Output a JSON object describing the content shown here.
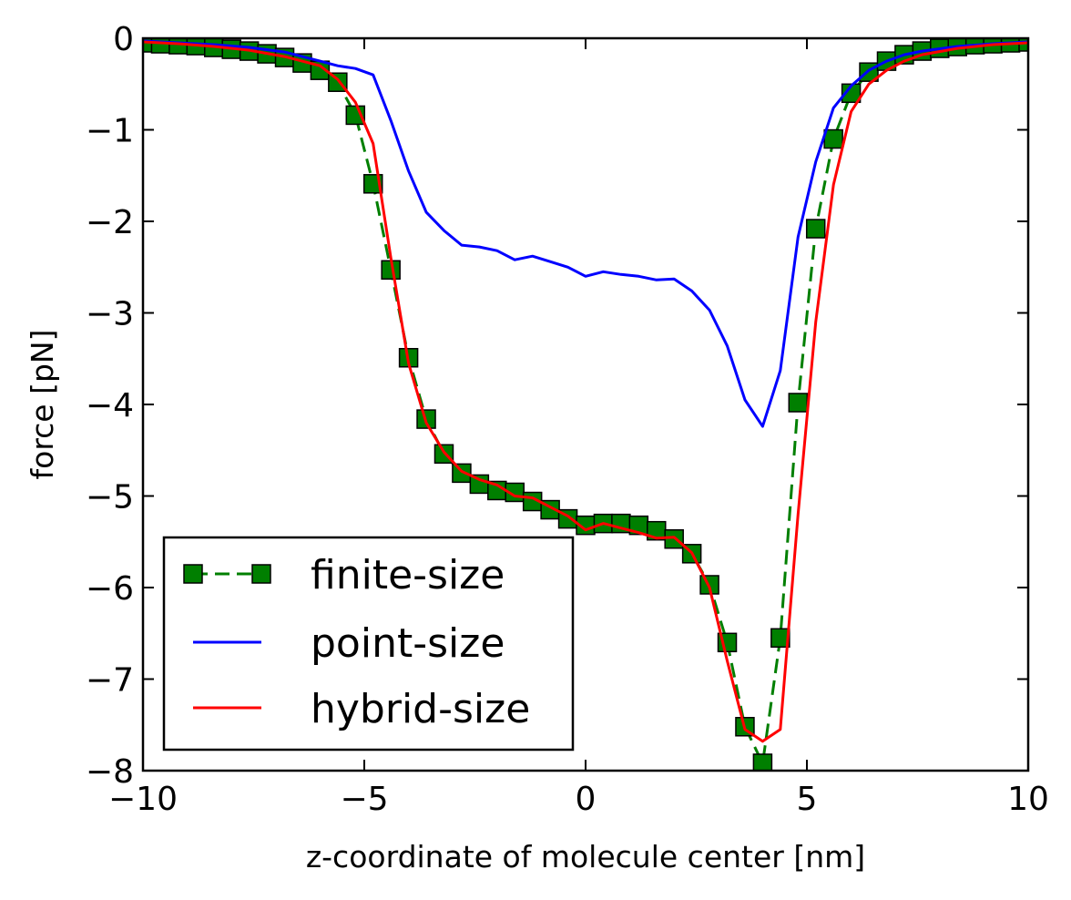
{
  "chart_data": {
    "type": "line",
    "title": "",
    "xlabel": "z-coordinate of molecule center [nm]",
    "ylabel": "force [pN]",
    "xlim": [
      -10,
      10
    ],
    "ylim": [
      -8,
      0
    ],
    "xticks": [
      -10,
      -5,
      0,
      5,
      10
    ],
    "xtick_labels": [
      "−10",
      "−5",
      "0",
      "5",
      "10"
    ],
    "yticks": [
      0,
      -1,
      -2,
      -3,
      -4,
      -5,
      -6,
      -7,
      -8
    ],
    "ytick_labels": [
      "0",
      "−1",
      "−2",
      "−3",
      "−4",
      "−5",
      "−6",
      "−7",
      "−8"
    ],
    "grid": false,
    "legend_position": "lower-left",
    "series": [
      {
        "name": "finite-size",
        "color": "#007f00",
        "style": "dashed-with-square-markers",
        "x": [
          -10,
          -9.6,
          -9.2,
          -8.8,
          -8.4,
          -8.0,
          -7.6,
          -7.2,
          -6.8,
          -6.4,
          -6.0,
          -5.6,
          -5.2,
          -4.8,
          -4.4,
          -4.0,
          -3.6,
          -3.2,
          -2.8,
          -2.4,
          -2.0,
          -1.6,
          -1.2,
          -0.8,
          -0.4,
          0.0,
          0.4,
          0.8,
          1.2,
          1.6,
          2.0,
          2.4,
          2.8,
          3.2,
          3.6,
          4.0,
          4.4,
          4.8,
          5.2,
          5.6,
          6.0,
          6.4,
          6.8,
          7.2,
          7.6,
          8.0,
          8.4,
          8.8,
          9.2,
          9.6,
          10.0
        ],
        "y": [
          -0.05,
          -0.06,
          -0.07,
          -0.08,
          -0.1,
          -0.12,
          -0.14,
          -0.17,
          -0.21,
          -0.27,
          -0.35,
          -0.48,
          -0.84,
          -1.59,
          -2.53,
          -3.49,
          -4.16,
          -4.54,
          -4.75,
          -4.87,
          -4.94,
          -4.96,
          -5.06,
          -5.15,
          -5.25,
          -5.32,
          -5.3,
          -5.3,
          -5.32,
          -5.38,
          -5.47,
          -5.63,
          -5.97,
          -6.6,
          -7.52,
          -7.92,
          -6.55,
          -3.98,
          -2.08,
          -1.1,
          -0.6,
          -0.37,
          -0.25,
          -0.18,
          -0.14,
          -0.11,
          -0.09,
          -0.07,
          -0.06,
          -0.05,
          -0.04
        ]
      },
      {
        "name": "point-size",
        "color": "#0000ff",
        "style": "solid",
        "x": [
          -10,
          -9.2,
          -8.4,
          -7.6,
          -6.8,
          -6.0,
          -5.6,
          -5.2,
          -4.8,
          -4.4,
          -4.0,
          -3.6,
          -3.2,
          -2.8,
          -2.4,
          -2.0,
          -1.6,
          -1.2,
          -0.8,
          -0.4,
          0.0,
          0.4,
          0.8,
          1.2,
          1.6,
          2.0,
          2.4,
          2.8,
          3.2,
          3.6,
          4.0,
          4.4,
          4.8,
          5.2,
          5.6,
          6.0,
          6.4,
          6.8,
          7.2,
          7.6,
          8.4,
          9.2,
          10.0
        ],
        "y": [
          -0.03,
          -0.05,
          -0.07,
          -0.1,
          -0.15,
          -0.25,
          -0.3,
          -0.33,
          -0.4,
          -0.9,
          -1.45,
          -1.9,
          -2.1,
          -2.26,
          -2.28,
          -2.32,
          -2.42,
          -2.38,
          -2.44,
          -2.5,
          -2.6,
          -2.55,
          -2.58,
          -2.6,
          -2.64,
          -2.63,
          -2.76,
          -2.97,
          -3.36,
          -3.95,
          -4.24,
          -3.63,
          -2.17,
          -1.35,
          -0.76,
          -0.52,
          -0.35,
          -0.25,
          -0.18,
          -0.14,
          -0.09,
          -0.06,
          -0.04
        ]
      },
      {
        "name": "hybrid-size",
        "color": "#ff0000",
        "style": "solid",
        "x": [
          -10,
          -9.2,
          -8.4,
          -7.6,
          -6.8,
          -6.0,
          -5.6,
          -5.2,
          -4.8,
          -4.4,
          -4.0,
          -3.6,
          -3.2,
          -2.8,
          -2.4,
          -2.0,
          -1.6,
          -1.2,
          -0.8,
          -0.4,
          0.0,
          0.4,
          0.8,
          1.2,
          1.6,
          2.0,
          2.4,
          2.8,
          3.2,
          3.6,
          4.0,
          4.4,
          4.8,
          5.2,
          5.6,
          6.0,
          6.4,
          6.8,
          7.2,
          7.6,
          8.4,
          9.2,
          10.0
        ],
        "y": [
          -0.04,
          -0.06,
          -0.09,
          -0.13,
          -0.2,
          -0.3,
          -0.45,
          -0.7,
          -1.15,
          -2.4,
          -3.55,
          -4.2,
          -4.52,
          -4.73,
          -4.82,
          -4.88,
          -5.0,
          -5.02,
          -5.12,
          -5.22,
          -5.37,
          -5.3,
          -5.35,
          -5.4,
          -5.46,
          -5.45,
          -5.62,
          -6.0,
          -6.8,
          -7.55,
          -7.68,
          -7.55,
          -5.2,
          -3.1,
          -1.6,
          -0.8,
          -0.5,
          -0.35,
          -0.25,
          -0.18,
          -0.11,
          -0.07,
          -0.05
        ]
      }
    ]
  }
}
